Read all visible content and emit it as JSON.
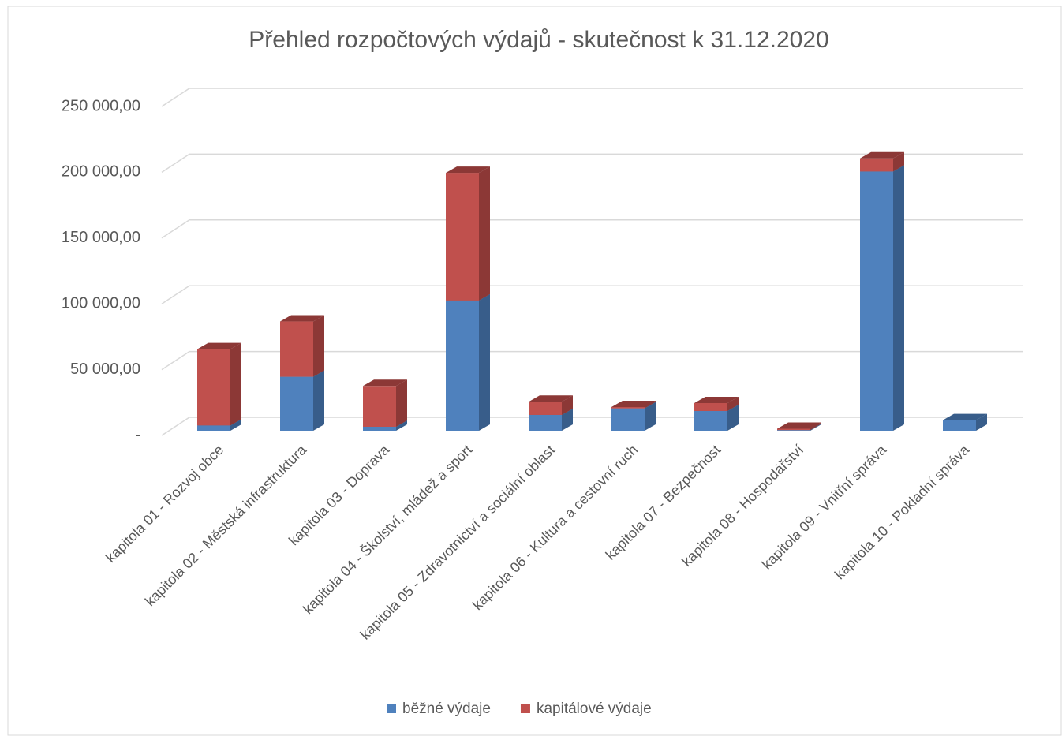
{
  "chart_data": {
    "type": "bar3d_stacked",
    "title": "Přehled rozpočtových výdajů - skutečnost k 31.12.2020",
    "categories": [
      "kapitola 01 - Rozvoj obce",
      "kapitola 02 - Městská infrastruktura",
      "kapitola 03 - Doprava",
      "kapitola 04 - Školství, mládež a sport",
      "kapitola 05 - Zdravotnictví a sociální oblast",
      "kapitola 06 - Kultura a cestovní ruch",
      "kapitola 07 - Bezpečnost",
      "kapitola 08 - Hospodářství",
      "kapitola 09 - Vnitřní správa",
      "kapitola 10 - Pokladní správa"
    ],
    "series": [
      {
        "name": "běžné výdaje",
        "color": "#4f81bd",
        "side": "#385d8a",
        "values": [
          4000,
          41000,
          3000,
          99000,
          12000,
          17000,
          15000,
          500,
          197000,
          8000
        ]
      },
      {
        "name": "kapitálové výdaje",
        "color": "#c0504d",
        "side": "#8c3836",
        "values": [
          58000,
          42000,
          31000,
          97000,
          10000,
          1000,
          6000,
          1000,
          10000,
          0
        ]
      }
    ],
    "ylim": [
      0,
      250000
    ],
    "yticks": [
      {
        "value": 0,
        "label": "-"
      },
      {
        "value": 50000,
        "label": "50 000,00"
      },
      {
        "value": 100000,
        "label": "100 000,00"
      },
      {
        "value": 150000,
        "label": "150 000,00"
      },
      {
        "value": 200000,
        "label": "200 000,00"
      },
      {
        "value": 250000,
        "label": "250 000,00"
      }
    ],
    "grid": true,
    "legend": "bottom"
  }
}
